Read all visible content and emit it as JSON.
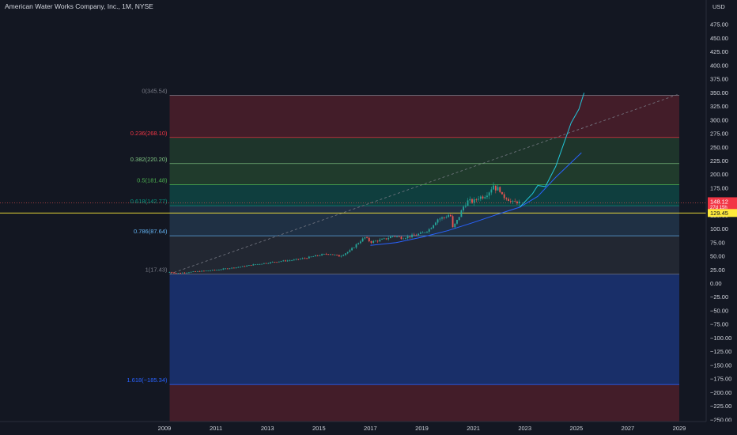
{
  "header": {
    "title": "American Water Works Company, Inc., 1M, NYSE",
    "currency": "USD"
  },
  "colors": {
    "background": "#131722",
    "axis_text": "#d1d4dc",
    "up_candle": "#26a69a",
    "down_candle": "#ef5350",
    "current_price_tag": "#f23645",
    "horizontal_line": "#ffeb3b",
    "trend_line": "#787b86",
    "projection_curve": "#22c5d8",
    "support_curve": "#2962ff"
  },
  "price_tags": {
    "current": {
      "price": "148.12",
      "countdown": "27d 15h",
      "value": 148.12
    },
    "line": {
      "price": "129.45",
      "value": 129.45
    }
  },
  "chart_data": {
    "type": "candlestick",
    "title": "American Water Works Company, Inc., 1M, NYSE",
    "xlabel": "",
    "ylabel": "USD",
    "x_ticks": [
      "2009",
      "2011",
      "2013",
      "2015",
      "2017",
      "2019",
      "2021",
      "2023",
      "2025",
      "2027",
      "2029"
    ],
    "y_ticks": [
      475,
      450,
      425,
      400,
      375,
      350,
      325,
      300,
      275,
      250,
      225,
      200,
      175,
      150,
      125,
      100,
      75,
      50,
      25,
      0,
      -25,
      -50,
      -75,
      -100,
      -125,
      -150,
      -175,
      -200,
      -225,
      -250
    ],
    "y_tick_labels": [
      "475.00",
      "450.00",
      "425.00",
      "400.00",
      "375.00",
      "350.00",
      "325.00",
      "300.00",
      "275.00",
      "250.00",
      "225.00",
      "200.00",
      "175.00",
      "150.00",
      "125.00",
      "100.00",
      "75.00",
      "50.00",
      "25.00",
      "0.00",
      "−25.00",
      "−50.00",
      "−75.00",
      "−100.00",
      "−125.00",
      "−150.00",
      "−175.00",
      "−200.00",
      "−225.00",
      "−250.00"
    ],
    "ylim": [
      -262,
      495
    ],
    "xlim": [
      2008.5,
      2029.5
    ],
    "fib_levels": [
      {
        "label": "0(345.54)",
        "ratio": 0,
        "price": 345.54,
        "color": "#787b86"
      },
      {
        "label": "0.236(268.10)",
        "ratio": 0.236,
        "price": 268.1,
        "color": "#f23645"
      },
      {
        "label": "0.382(220.20)",
        "ratio": 0.382,
        "price": 220.2,
        "color": "#81c784"
      },
      {
        "label": "0.5(181.48)",
        "ratio": 0.5,
        "price": 181.48,
        "color": "#4caf50"
      },
      {
        "label": "0.618(142.77)",
        "ratio": 0.618,
        "price": 142.77,
        "color": "#089981"
      },
      {
        "label": "0.786(87.64)",
        "ratio": 0.786,
        "price": 87.64,
        "color": "#64b5f6"
      },
      {
        "label": "1(17.43)",
        "ratio": 1,
        "price": 17.43,
        "color": "#787b86"
      },
      {
        "label": "1.618(−185.34)",
        "ratio": 1.618,
        "price": -185.34,
        "color": "#2962ff"
      }
    ],
    "fib_range_x": [
      2009.2,
      2029.0
    ],
    "series": [
      {
        "kind": "close",
        "points": [
          [
            2009.2,
            21
          ],
          [
            2009.5,
            19
          ],
          [
            2010.0,
            21
          ],
          [
            2010.5,
            23
          ],
          [
            2011.0,
            25
          ],
          [
            2011.5,
            28
          ],
          [
            2012.0,
            31
          ],
          [
            2012.5,
            35
          ],
          [
            2013.0,
            38
          ],
          [
            2013.5,
            41
          ],
          [
            2014.0,
            43
          ],
          [
            2014.5,
            47
          ],
          [
            2015.0,
            52
          ],
          [
            2015.4,
            55
          ],
          [
            2015.8,
            50
          ],
          [
            2016.2,
            60
          ],
          [
            2016.6,
            78
          ],
          [
            2016.8,
            85
          ],
          [
            2017.0,
            76
          ],
          [
            2017.3,
            79
          ],
          [
            2017.6,
            82
          ],
          [
            2017.9,
            88
          ],
          [
            2018.2,
            84
          ],
          [
            2018.5,
            86
          ],
          [
            2018.8,
            90
          ],
          [
            2019.0,
            92
          ],
          [
            2019.3,
            100
          ],
          [
            2019.6,
            118
          ],
          [
            2019.9,
            122
          ],
          [
            2020.1,
            128
          ],
          [
            2020.2,
            102
          ],
          [
            2020.4,
            118
          ],
          [
            2020.6,
            140
          ],
          [
            2020.8,
            152
          ],
          [
            2021.0,
            150
          ],
          [
            2021.2,
            158
          ],
          [
            2021.4,
            160
          ],
          [
            2021.6,
            168
          ],
          [
            2021.8,
            182
          ],
          [
            2021.9,
            170
          ],
          [
            2022.0,
            178
          ],
          [
            2022.1,
            160
          ],
          [
            2022.3,
            158
          ],
          [
            2022.5,
            148
          ],
          [
            2022.7,
            150
          ],
          [
            2022.8,
            148.12
          ]
        ]
      },
      {
        "kind": "projection",
        "points": [
          [
            2022.8,
            140
          ],
          [
            2023.3,
            165
          ],
          [
            2023.5,
            180
          ],
          [
            2023.8,
            178
          ],
          [
            2024.2,
            215
          ],
          [
            2024.5,
            255
          ],
          [
            2024.8,
            295
          ],
          [
            2025.1,
            320
          ],
          [
            2025.3,
            350
          ]
        ]
      },
      {
        "kind": "support",
        "points": [
          [
            2017.0,
            70
          ],
          [
            2018.0,
            75
          ],
          [
            2019.0,
            85
          ],
          [
            2020.0,
            97
          ],
          [
            2021.0,
            112
          ],
          [
            2022.0,
            128
          ],
          [
            2022.8,
            140
          ],
          [
            2023.5,
            160
          ],
          [
            2024.2,
            195
          ],
          [
            2025.2,
            240
          ]
        ]
      },
      {
        "kind": "trend",
        "points": [
          [
            2009.2,
            17.43
          ],
          [
            2029.0,
            348
          ]
        ]
      }
    ]
  }
}
